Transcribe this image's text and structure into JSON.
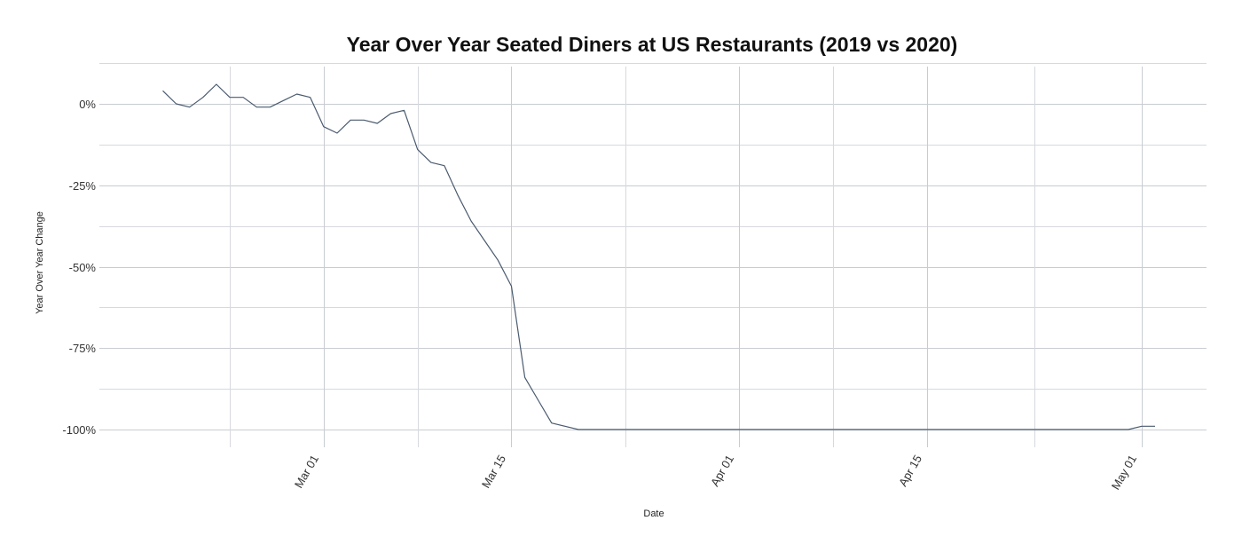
{
  "chart_data": {
    "type": "line",
    "title": "Year Over Year Seated Diners at US Restaurants (2019 vs 2020)",
    "xlabel": "Date",
    "ylabel": "Year Over Year Change",
    "ylim": [
      -100,
      0
    ],
    "xlim": [
      "2020-02-14",
      "2020-05-02"
    ],
    "y_ticks": [
      {
        "value": 0,
        "label": "0%"
      },
      {
        "value": -25,
        "label": "-25%"
      },
      {
        "value": -50,
        "label": "-50%"
      },
      {
        "value": -75,
        "label": "-75%"
      },
      {
        "value": -100,
        "label": "-100%"
      }
    ],
    "x_ticks": [
      {
        "date": "2020-03-01",
        "label": "Mar 01"
      },
      {
        "date": "2020-03-15",
        "label": "Mar 15"
      },
      {
        "date": "2020-04-01",
        "label": "Apr 01"
      },
      {
        "date": "2020-04-15",
        "label": "Apr 15"
      },
      {
        "date": "2020-05-01",
        "label": "May 01"
      }
    ],
    "grid": true,
    "legend": "none",
    "line_color": "#4a5a6e",
    "series": [
      {
        "x": [
          "2020-02-18",
          "2020-02-19",
          "2020-02-20",
          "2020-02-21",
          "2020-02-22",
          "2020-02-23",
          "2020-02-24",
          "2020-02-25",
          "2020-02-26",
          "2020-02-27",
          "2020-02-28",
          "2020-02-29",
          "2020-03-01",
          "2020-03-02",
          "2020-03-03",
          "2020-03-04",
          "2020-03-05",
          "2020-03-06",
          "2020-03-07",
          "2020-03-08",
          "2020-03-09",
          "2020-03-10",
          "2020-03-11",
          "2020-03-12",
          "2020-03-13",
          "2020-03-14",
          "2020-03-15",
          "2020-03-16",
          "2020-03-17",
          "2020-03-18",
          "2020-03-19",
          "2020-03-20",
          "2020-03-21",
          "2020-03-22",
          "2020-03-23",
          "2020-03-24",
          "2020-03-25",
          "2020-03-26",
          "2020-03-27",
          "2020-03-28",
          "2020-03-29",
          "2020-03-30",
          "2020-03-31",
          "2020-04-01",
          "2020-04-02",
          "2020-04-03",
          "2020-04-04",
          "2020-04-05",
          "2020-04-06",
          "2020-04-07",
          "2020-04-08",
          "2020-04-09",
          "2020-04-10",
          "2020-04-11",
          "2020-04-12",
          "2020-04-13",
          "2020-04-14",
          "2020-04-15",
          "2020-04-16",
          "2020-04-17",
          "2020-04-18",
          "2020-04-19",
          "2020-04-20",
          "2020-04-21",
          "2020-04-22",
          "2020-04-23",
          "2020-04-24",
          "2020-04-25",
          "2020-04-26",
          "2020-04-27",
          "2020-04-28",
          "2020-04-29",
          "2020-04-30",
          "2020-05-01",
          "2020-05-02"
        ],
        "values": [
          4,
          0,
          -1,
          2,
          6,
          2,
          2,
          -1,
          -1,
          1,
          3,
          2,
          -7,
          -9,
          -5,
          -5,
          -6,
          -3,
          -2,
          -14,
          -18,
          -19,
          -28,
          -36,
          -42,
          -48,
          -56,
          -84,
          -91,
          -98,
          -99,
          -100,
          -100,
          -100,
          -100,
          -100,
          -100,
          -100,
          -100,
          -100,
          -100,
          -100,
          -100,
          -100,
          -100,
          -100,
          -100,
          -100,
          -100,
          -100,
          -100,
          -100,
          -100,
          -100,
          -100,
          -100,
          -100,
          -100,
          -100,
          -100,
          -100,
          -100,
          -100,
          -100,
          -100,
          -100,
          -100,
          -100,
          -100,
          -100,
          -100,
          -100,
          -100,
          -99,
          -99
        ]
      }
    ]
  }
}
